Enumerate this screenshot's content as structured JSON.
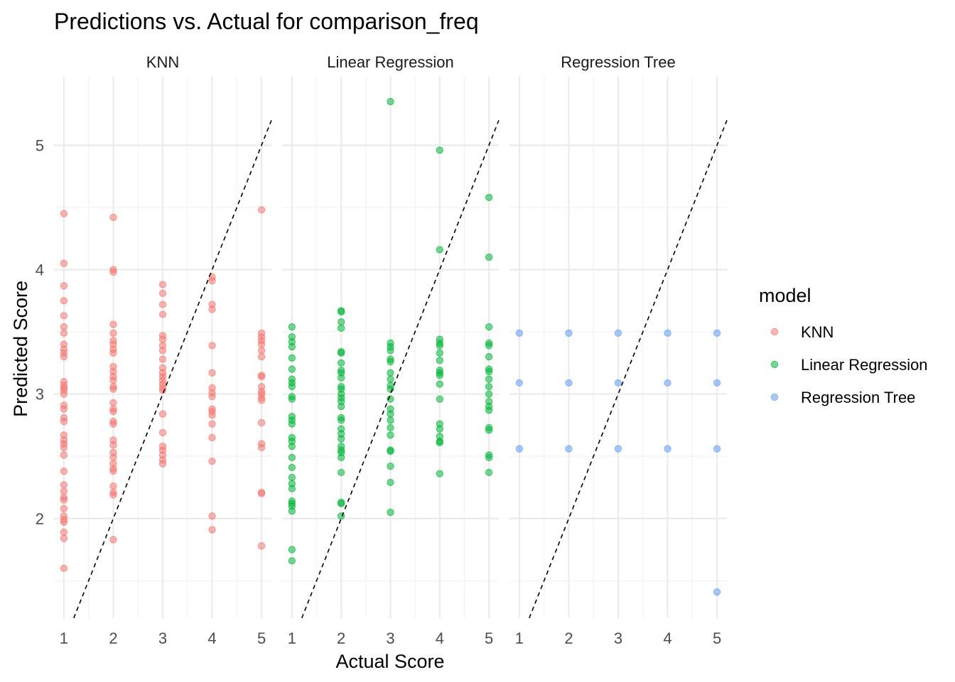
{
  "chart_data": {
    "type": "scatter",
    "title": "Predictions vs. Actual for comparison_freq",
    "xlabel": "Actual Score",
    "ylabel": "Predicted Score",
    "xlim": [
      0.8,
      5.2
    ],
    "ylim": [
      1.2,
      5.55
    ],
    "x_ticks": [
      1,
      2,
      3,
      4,
      5
    ],
    "y_ticks": [
      2,
      3,
      4,
      5
    ],
    "grid": true,
    "reference_line": "y = x (dashed)",
    "legend": {
      "title": "model",
      "position": "right",
      "entries": [
        "KNN",
        "Linear Regression",
        "Regression Tree"
      ]
    },
    "series": [
      {
        "name": "KNN",
        "panel": "KNN",
        "color": "#F8766D",
        "points": [
          [
            1,
            4.45
          ],
          [
            1,
            4.05
          ],
          [
            1,
            3.87
          ],
          [
            1,
            3.75
          ],
          [
            1,
            3.63
          ],
          [
            1,
            3.54
          ],
          [
            1,
            3.49
          ],
          [
            1,
            3.4
          ],
          [
            1,
            3.36
          ],
          [
            1,
            3.33
          ],
          [
            1,
            3.3
          ],
          [
            1,
            3.1
          ],
          [
            1,
            3.07
          ],
          [
            1,
            3.05
          ],
          [
            1,
            3.03
          ],
          [
            1,
            3.0
          ],
          [
            1,
            2.91
          ],
          [
            1,
            2.88
          ],
          [
            1,
            2.81
          ],
          [
            1,
            2.78
          ],
          [
            1,
            2.67
          ],
          [
            1,
            2.63
          ],
          [
            1,
            2.6
          ],
          [
            1,
            2.57
          ],
          [
            1,
            2.51
          ],
          [
            1,
            2.38
          ],
          [
            1,
            2.27
          ],
          [
            1,
            2.22
          ],
          [
            1,
            2.17
          ],
          [
            1,
            2.15
          ],
          [
            1,
            2.08
          ],
          [
            1,
            2.02
          ],
          [
            1,
            1.99
          ],
          [
            1,
            1.97
          ],
          [
            1,
            1.89
          ],
          [
            1,
            1.84
          ],
          [
            1,
            1.6
          ],
          [
            2,
            4.42
          ],
          [
            2,
            4.0
          ],
          [
            2,
            3.98
          ],
          [
            2,
            3.56
          ],
          [
            2,
            3.49
          ],
          [
            2,
            3.43
          ],
          [
            2,
            3.4
          ],
          [
            2,
            3.36
          ],
          [
            2,
            3.33
          ],
          [
            2,
            3.22
          ],
          [
            2,
            3.18
          ],
          [
            2,
            3.14
          ],
          [
            2,
            3.11
          ],
          [
            2,
            3.06
          ],
          [
            2,
            3.04
          ],
          [
            2,
            2.93
          ],
          [
            2,
            2.88
          ],
          [
            2,
            2.86
          ],
          [
            2,
            2.78
          ],
          [
            2,
            2.76
          ],
          [
            2,
            2.63
          ],
          [
            2,
            2.59
          ],
          [
            2,
            2.53
          ],
          [
            2,
            2.49
          ],
          [
            2,
            2.44
          ],
          [
            2,
            2.4
          ],
          [
            2,
            2.38
          ],
          [
            2,
            2.26
          ],
          [
            2,
            2.21
          ],
          [
            2,
            2.19
          ],
          [
            2,
            1.83
          ],
          [
            3,
            3.88
          ],
          [
            3,
            3.81
          ],
          [
            3,
            3.72
          ],
          [
            3,
            3.64
          ],
          [
            3,
            3.47
          ],
          [
            3,
            3.44
          ],
          [
            3,
            3.39
          ],
          [
            3,
            3.35
          ],
          [
            3,
            3.28
          ],
          [
            3,
            3.21
          ],
          [
            3,
            3.17
          ],
          [
            3,
            3.14
          ],
          [
            3,
            3.11
          ],
          [
            3,
            3.08
          ],
          [
            3,
            3.05
          ],
          [
            3,
            3.03
          ],
          [
            3,
            2.84
          ],
          [
            3,
            2.69
          ],
          [
            3,
            2.58
          ],
          [
            3,
            2.55
          ],
          [
            3,
            2.51
          ],
          [
            3,
            2.47
          ],
          [
            3,
            2.44
          ],
          [
            4,
            3.94
          ],
          [
            4,
            3.91
          ],
          [
            4,
            3.72
          ],
          [
            4,
            3.68
          ],
          [
            4,
            3.39
          ],
          [
            4,
            3.17
          ],
          [
            4,
            3.05
          ],
          [
            4,
            3.01
          ],
          [
            4,
            2.98
          ],
          [
            4,
            2.88
          ],
          [
            4,
            2.86
          ],
          [
            4,
            2.83
          ],
          [
            4,
            2.76
          ],
          [
            4,
            2.65
          ],
          [
            4,
            2.46
          ],
          [
            4,
            2.02
          ],
          [
            4,
            1.91
          ],
          [
            5,
            4.48
          ],
          [
            5,
            3.49
          ],
          [
            5,
            3.46
          ],
          [
            5,
            3.43
          ],
          [
            5,
            3.4
          ],
          [
            5,
            3.35
          ],
          [
            5,
            3.3
          ],
          [
            5,
            3.15
          ],
          [
            5,
            3.14
          ],
          [
            5,
            3.06
          ],
          [
            5,
            3.02
          ],
          [
            5,
            3.0
          ],
          [
            5,
            2.97
          ],
          [
            5,
            2.95
          ],
          [
            5,
            2.77
          ],
          [
            5,
            2.6
          ],
          [
            5,
            2.57
          ],
          [
            5,
            2.21
          ],
          [
            5,
            2.2
          ],
          [
            5,
            1.78
          ]
        ]
      },
      {
        "name": "Linear Regression",
        "panel": "Linear Regression",
        "color": "#00BA38",
        "points": [
          [
            1,
            3.54
          ],
          [
            1,
            3.46
          ],
          [
            1,
            3.42
          ],
          [
            1,
            3.38
          ],
          [
            1,
            3.29
          ],
          [
            1,
            3.2
          ],
          [
            1,
            3.12
          ],
          [
            1,
            3.09
          ],
          [
            1,
            3.06
          ],
          [
            1,
            2.98
          ],
          [
            1,
            2.96
          ],
          [
            1,
            2.82
          ],
          [
            1,
            2.79
          ],
          [
            1,
            2.76
          ],
          [
            1,
            2.65
          ],
          [
            1,
            2.62
          ],
          [
            1,
            2.58
          ],
          [
            1,
            2.49
          ],
          [
            1,
            2.41
          ],
          [
            1,
            2.33
          ],
          [
            1,
            2.28
          ],
          [
            1,
            2.24
          ],
          [
            1,
            2.14
          ],
          [
            1,
            2.12
          ],
          [
            1,
            2.1
          ],
          [
            1,
            2.06
          ],
          [
            1,
            1.75
          ],
          [
            1,
            1.66
          ],
          [
            2,
            3.67
          ],
          [
            2,
            3.66
          ],
          [
            2,
            3.58
          ],
          [
            2,
            3.53
          ],
          [
            2,
            3.34
          ],
          [
            2,
            3.33
          ],
          [
            2,
            3.25
          ],
          [
            2,
            3.19
          ],
          [
            2,
            3.17
          ],
          [
            2,
            3.13
          ],
          [
            2,
            3.06
          ],
          [
            2,
            3.04
          ],
          [
            2,
            3.0
          ],
          [
            2,
            2.97
          ],
          [
            2,
            2.94
          ],
          [
            2,
            2.9
          ],
          [
            2,
            2.81
          ],
          [
            2,
            2.79
          ],
          [
            2,
            2.72
          ],
          [
            2,
            2.68
          ],
          [
            2,
            2.64
          ],
          [
            2,
            2.58
          ],
          [
            2,
            2.55
          ],
          [
            2,
            2.53
          ],
          [
            2,
            2.49
          ],
          [
            2,
            2.37
          ],
          [
            2,
            2.13
          ],
          [
            2,
            2.12
          ],
          [
            2,
            2.02
          ],
          [
            3,
            5.35
          ],
          [
            3,
            3.41
          ],
          [
            3,
            3.38
          ],
          [
            3,
            3.35
          ],
          [
            3,
            3.28
          ],
          [
            3,
            3.26
          ],
          [
            3,
            3.17
          ],
          [
            3,
            3.12
          ],
          [
            3,
            3.07
          ],
          [
            3,
            3.04
          ],
          [
            3,
            2.96
          ],
          [
            3,
            2.88
          ],
          [
            3,
            2.84
          ],
          [
            3,
            2.79
          ],
          [
            3,
            2.73
          ],
          [
            3,
            2.67
          ],
          [
            3,
            2.55
          ],
          [
            3,
            2.54
          ],
          [
            3,
            2.42
          ],
          [
            3,
            2.29
          ],
          [
            3,
            2.05
          ],
          [
            4,
            4.96
          ],
          [
            4,
            4.16
          ],
          [
            4,
            3.44
          ],
          [
            4,
            3.41
          ],
          [
            4,
            3.39
          ],
          [
            4,
            3.33
          ],
          [
            4,
            3.27
          ],
          [
            4,
            3.19
          ],
          [
            4,
            3.17
          ],
          [
            4,
            3.15
          ],
          [
            4,
            3.08
          ],
          [
            4,
            2.96
          ],
          [
            4,
            2.76
          ],
          [
            4,
            2.72
          ],
          [
            4,
            2.66
          ],
          [
            4,
            2.62
          ],
          [
            4,
            2.61
          ],
          [
            4,
            2.36
          ],
          [
            5,
            4.58
          ],
          [
            5,
            4.1
          ],
          [
            5,
            3.54
          ],
          [
            5,
            3.41
          ],
          [
            5,
            3.39
          ],
          [
            5,
            3.3
          ],
          [
            5,
            3.2
          ],
          [
            5,
            3.18
          ],
          [
            5,
            3.12
          ],
          [
            5,
            3.06
          ],
          [
            5,
            3.0
          ],
          [
            5,
            2.94
          ],
          [
            5,
            2.9
          ],
          [
            5,
            2.87
          ],
          [
            5,
            2.73
          ],
          [
            5,
            2.71
          ],
          [
            5,
            2.51
          ],
          [
            5,
            2.49
          ],
          [
            5,
            2.37
          ]
        ]
      },
      {
        "name": "Regression Tree",
        "panel": "Regression Tree",
        "color": "#619CFF",
        "points": [
          [
            1,
            3.49
          ],
          [
            1,
            3.09
          ],
          [
            1,
            2.56
          ],
          [
            2,
            3.49
          ],
          [
            2,
            3.09
          ],
          [
            2,
            2.56
          ],
          [
            3,
            3.49
          ],
          [
            3,
            3.09
          ],
          [
            3,
            2.56
          ],
          [
            4,
            3.49
          ],
          [
            4,
            3.09
          ],
          [
            4,
            2.56
          ],
          [
            5,
            3.49
          ],
          [
            5,
            3.09
          ],
          [
            5,
            2.56
          ],
          [
            5,
            1.41
          ]
        ]
      }
    ]
  }
}
